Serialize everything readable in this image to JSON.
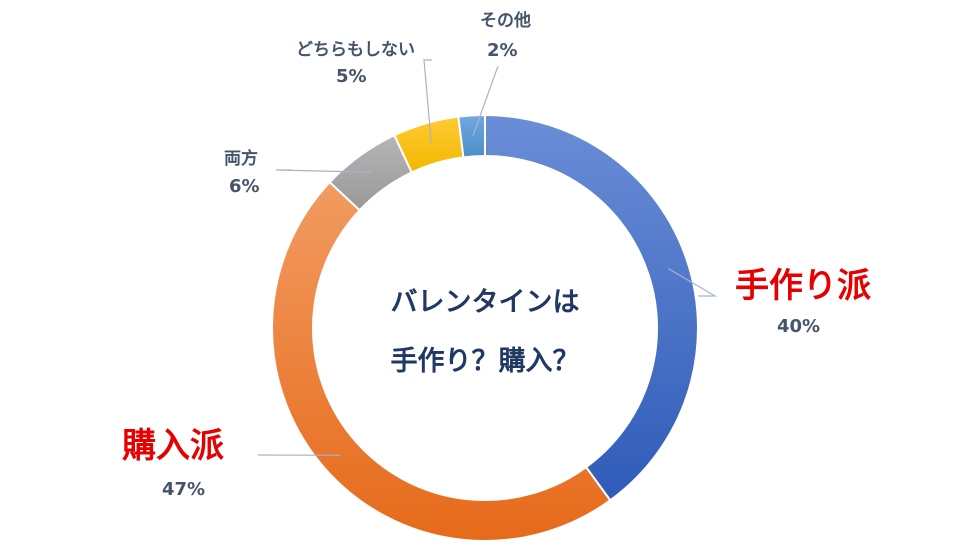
{
  "chart_data": {
    "type": "pie",
    "subtype": "donut",
    "title": "バレンタインは\n手作り？購入？",
    "center_text": [
      "バレンタインは",
      "手作り？購入？"
    ],
    "categories": [
      "手作り派",
      "購入派",
      "両方",
      "どちらもしない",
      "その他"
    ],
    "values": [
      40,
      47,
      6,
      5,
      2
    ],
    "value_labels": [
      "40%",
      "47%",
      "6%",
      "5%",
      "2%"
    ],
    "colors": [
      "#4472C4",
      "#ED7D31",
      "#A5A5A5",
      "#FFC000",
      "#5B9BD5"
    ],
    "highlight_color": "#E60000",
    "legend": "none"
  }
}
